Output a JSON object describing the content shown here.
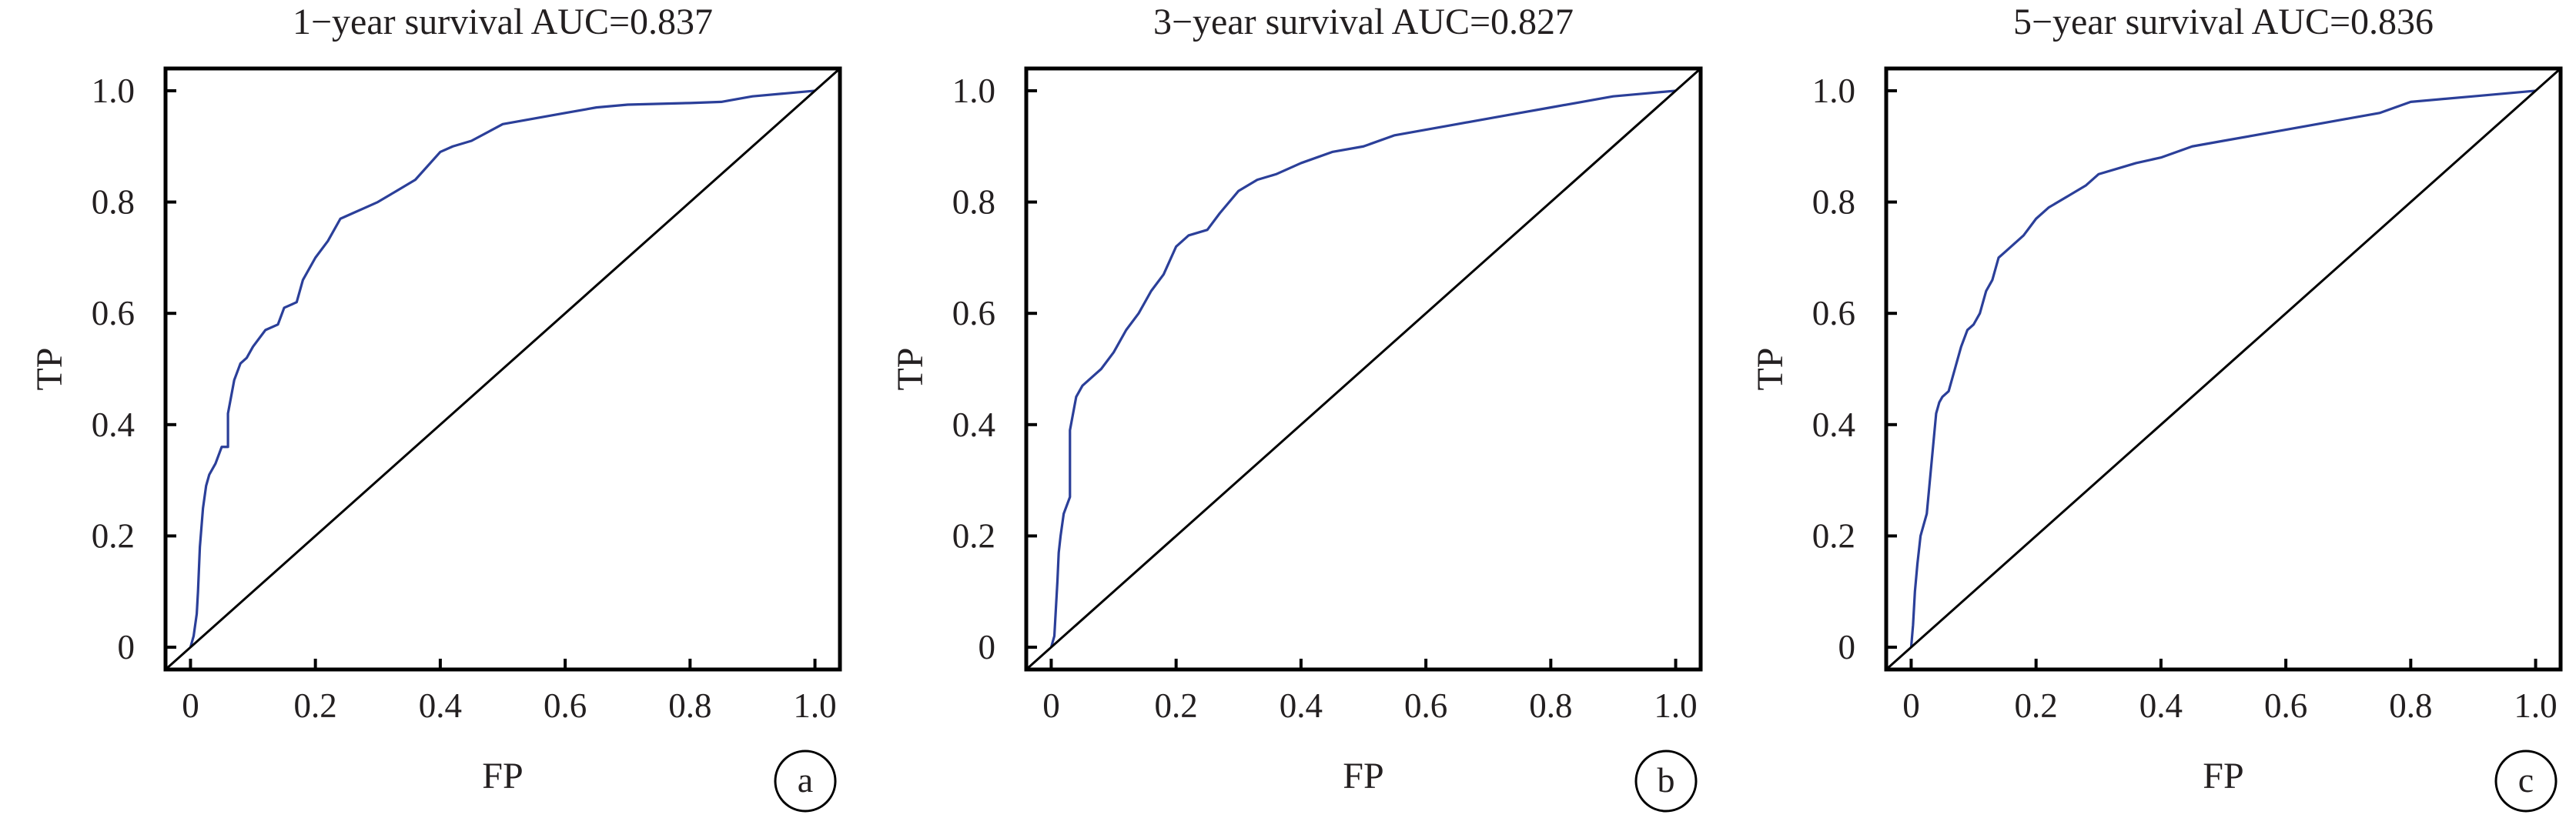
{
  "chart_data": [
    {
      "type": "line",
      "title": "1−year survival AUC=0.837",
      "xlabel": "FP",
      "ylabel": "TP",
      "panel_label": "a",
      "xlim": [
        -0.04,
        1.04
      ],
      "ylim": [
        -0.04,
        1.04
      ],
      "xticks": [
        0,
        0.2,
        0.4,
        0.6,
        0.8,
        1.0
      ],
      "xtick_labels": [
        "0",
        "0.2",
        "0.4",
        "0.6",
        "0.8",
        "1.0"
      ],
      "yticks": [
        0,
        0.2,
        0.4,
        0.6,
        0.8,
        1.0
      ],
      "ytick_labels": [
        "0",
        "0.2",
        "0.4",
        "0.6",
        "0.8",
        "1.0"
      ],
      "grid": false,
      "series": [
        {
          "color": "#2b3f99",
          "x": [
            0,
            0.005,
            0.01,
            0.012,
            0.015,
            0.02,
            0.025,
            0.03,
            0.04,
            0.05,
            0.06,
            0.06,
            0.07,
            0.08,
            0.09,
            0.1,
            0.12,
            0.14,
            0.15,
            0.17,
            0.18,
            0.2,
            0.22,
            0.24,
            0.26,
            0.28,
            0.3,
            0.33,
            0.36,
            0.4,
            0.42,
            0.45,
            0.5,
            0.55,
            0.6,
            0.65,
            0.7,
            0.8,
            0.85,
            0.9,
            0.95,
            1.0
          ],
          "y": [
            0,
            0.02,
            0.06,
            0.1,
            0.18,
            0.25,
            0.29,
            0.31,
            0.33,
            0.36,
            0.36,
            0.42,
            0.48,
            0.51,
            0.52,
            0.54,
            0.57,
            0.58,
            0.61,
            0.62,
            0.66,
            0.7,
            0.73,
            0.77,
            0.78,
            0.79,
            0.8,
            0.82,
            0.84,
            0.89,
            0.9,
            0.91,
            0.94,
            0.95,
            0.96,
            0.97,
            0.975,
            0.978,
            0.98,
            0.99,
            0.995,
            1.0
          ]
        },
        {
          "color": "#000000",
          "x": [
            0,
            1
          ],
          "y": [
            0,
            1
          ]
        }
      ]
    },
    {
      "type": "line",
      "title": "3−year survival AUC=0.827",
      "xlabel": "FP",
      "ylabel": "TP",
      "panel_label": "b",
      "xlim": [
        -0.04,
        1.04
      ],
      "ylim": [
        -0.04,
        1.04
      ],
      "xticks": [
        0,
        0.2,
        0.4,
        0.6,
        0.8,
        1.0
      ],
      "xtick_labels": [
        "0",
        "0.2",
        "0.4",
        "0.6",
        "0.8",
        "1.0"
      ],
      "yticks": [
        0,
        0.2,
        0.4,
        0.6,
        0.8,
        1.0
      ],
      "ytick_labels": [
        "0",
        "0.2",
        "0.4",
        "0.6",
        "0.8",
        "1.0"
      ],
      "grid": false,
      "series": [
        {
          "color": "#2b3f99",
          "x": [
            0,
            0.005,
            0.008,
            0.01,
            0.012,
            0.015,
            0.02,
            0.03,
            0.03,
            0.035,
            0.04,
            0.05,
            0.06,
            0.07,
            0.08,
            0.1,
            0.12,
            0.14,
            0.15,
            0.16,
            0.18,
            0.2,
            0.22,
            0.25,
            0.27,
            0.3,
            0.33,
            0.36,
            0.4,
            0.45,
            0.5,
            0.55,
            0.6,
            0.65,
            0.7,
            0.75,
            0.8,
            0.85,
            0.9,
            0.95,
            1.0
          ],
          "y": [
            0,
            0.02,
            0.08,
            0.12,
            0.17,
            0.2,
            0.24,
            0.27,
            0.39,
            0.42,
            0.45,
            0.47,
            0.48,
            0.49,
            0.5,
            0.53,
            0.57,
            0.6,
            0.62,
            0.64,
            0.67,
            0.72,
            0.74,
            0.75,
            0.78,
            0.82,
            0.84,
            0.85,
            0.87,
            0.89,
            0.9,
            0.92,
            0.93,
            0.94,
            0.95,
            0.96,
            0.97,
            0.98,
            0.99,
            0.995,
            1.0
          ]
        },
        {
          "color": "#000000",
          "x": [
            0,
            1
          ],
          "y": [
            0,
            1
          ]
        }
      ]
    },
    {
      "type": "line",
      "title": "5−year survival AUC=0.836",
      "xlabel": "FP",
      "ylabel": "TP",
      "panel_label": "c",
      "xlim": [
        -0.04,
        1.04
      ],
      "ylim": [
        -0.04,
        1.04
      ],
      "xticks": [
        0,
        0.2,
        0.4,
        0.6,
        0.8,
        1.0
      ],
      "xtick_labels": [
        "0",
        "0.2",
        "0.4",
        "0.6",
        "0.8",
        "1.0"
      ],
      "yticks": [
        0,
        0.2,
        0.4,
        0.6,
        0.8,
        1.0
      ],
      "ytick_labels": [
        "0",
        "0.2",
        "0.4",
        "0.6",
        "0.8",
        "1.0"
      ],
      "grid": false,
      "series": [
        {
          "color": "#2b3f99",
          "x": [
            0,
            0.003,
            0.006,
            0.01,
            0.015,
            0.02,
            0.025,
            0.03,
            0.035,
            0.04,
            0.045,
            0.05,
            0.06,
            0.07,
            0.08,
            0.09,
            0.1,
            0.11,
            0.12,
            0.13,
            0.14,
            0.15,
            0.16,
            0.18,
            0.2,
            0.22,
            0.25,
            0.28,
            0.3,
            0.33,
            0.36,
            0.4,
            0.45,
            0.5,
            0.55,
            0.6,
            0.65,
            0.7,
            0.75,
            0.8,
            0.9,
            1.0
          ],
          "y": [
            0,
            0.04,
            0.1,
            0.15,
            0.2,
            0.22,
            0.24,
            0.3,
            0.36,
            0.42,
            0.44,
            0.45,
            0.46,
            0.5,
            0.54,
            0.57,
            0.58,
            0.6,
            0.64,
            0.66,
            0.7,
            0.71,
            0.72,
            0.74,
            0.77,
            0.79,
            0.81,
            0.83,
            0.85,
            0.86,
            0.87,
            0.88,
            0.9,
            0.91,
            0.92,
            0.93,
            0.94,
            0.95,
            0.96,
            0.98,
            0.99,
            1.0
          ]
        },
        {
          "color": "#000000",
          "x": [
            0,
            1
          ],
          "y": [
            0,
            1
          ]
        }
      ]
    }
  ]
}
